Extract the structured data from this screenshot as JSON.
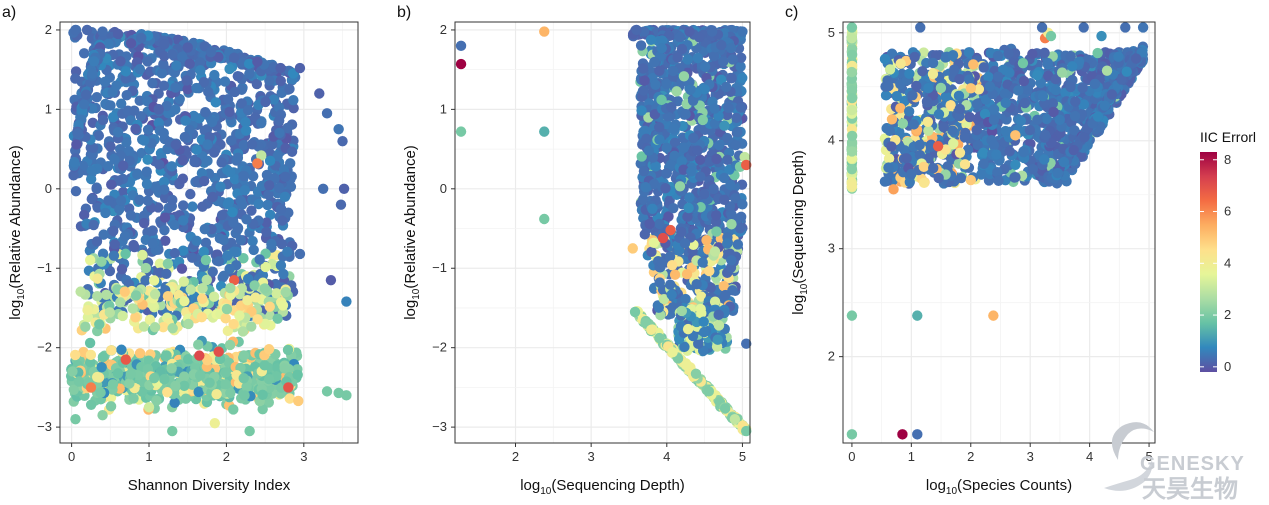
{
  "chart_data": [
    {
      "id": "a",
      "type": "scatter",
      "panel_tag": "a)",
      "xlabel": "Shannon Diversity Index",
      "ylabel_main": "log",
      "ylabel_sub": "10",
      "ylabel_rest": "(Relative Abundance)",
      "xlim": [
        -0.15,
        3.7
      ],
      "ylim": [
        -3.2,
        2.1
      ],
      "xticks": [
        0,
        1,
        2,
        3
      ],
      "yticks": [
        -3,
        -2,
        -1,
        0,
        1,
        2
      ],
      "xtick_labels": [
        "0",
        "1",
        "2",
        "3"
      ],
      "ytick_labels": [
        "−3",
        "−2",
        "−1",
        "0",
        "1",
        "2"
      ],
      "grid": true,
      "points_note_seeded": true,
      "points": [
        [
          0.05,
          2.0,
          0.5
        ],
        [
          0.2,
          2.0,
          0.4
        ],
        [
          0.4,
          1.98,
          0.5
        ],
        [
          0.6,
          1.95,
          0.3
        ],
        [
          0.9,
          1.9,
          0.5
        ],
        [
          1.2,
          1.82,
          0.4
        ],
        [
          1.5,
          1.78,
          0.3
        ],
        [
          1.8,
          1.72,
          0.5
        ],
        [
          2.1,
          1.65,
          0.4
        ],
        [
          2.4,
          1.6,
          0.2
        ],
        [
          2.7,
          1.52,
          0.3
        ],
        [
          2.95,
          1.52,
          0.3
        ],
        [
          3.2,
          1.2,
          0.3
        ],
        [
          3.3,
          0.95,
          0.5
        ],
        [
          3.45,
          0.75,
          0.6
        ],
        [
          3.5,
          0.6,
          0.4
        ],
        [
          3.48,
          -0.2,
          0.4
        ],
        [
          3.52,
          0.0,
          0.3
        ],
        [
          3.25,
          0.0,
          0.5
        ],
        [
          3.35,
          -1.15,
          0.2
        ],
        [
          3.55,
          -1.42,
          0.8
        ],
        [
          2.95,
          -0.82,
          0.5
        ],
        [
          2.45,
          0.42,
          3.0
        ],
        [
          2.4,
          0.32,
          6.0
        ],
        [
          2.1,
          -1.15,
          6.5
        ],
        [
          1.9,
          -2.05,
          6.8
        ],
        [
          1.65,
          -2.1,
          6.9
        ],
        [
          2.8,
          -2.5,
          6.7
        ],
        [
          0.7,
          -2.15,
          6.6
        ],
        [
          0.25,
          -2.5,
          6.0
        ],
        [
          1.85,
          -2.95,
          3.8
        ],
        [
          1.3,
          -3.05,
          2.0
        ],
        [
          2.3,
          -3.05,
          2.0
        ],
        [
          3.45,
          -2.57,
          2.0
        ],
        [
          3.55,
          -2.6,
          2.0
        ],
        [
          3.3,
          -2.55,
          2.0
        ],
        [
          0.05,
          -2.9,
          2.0
        ],
        [
          0.4,
          -2.85,
          2.2
        ],
        [
          1.0,
          -2.75,
          3.2
        ],
        [
          2.05,
          -1.25,
          2.5
        ]
      ]
    },
    {
      "id": "b",
      "type": "scatter",
      "panel_tag": "b)",
      "xlabel_main": "log",
      "xlabel_sub": "10",
      "xlabel_rest": "(Sequencing Depth)",
      "ylabel_main": "log",
      "ylabel_sub": "10",
      "ylabel_rest": "(Relative Abundance)",
      "xlim": [
        1.2,
        5.1
      ],
      "ylim": [
        -3.2,
        2.1
      ],
      "xticks": [
        2,
        3,
        4,
        5
      ],
      "yticks": [
        -3,
        -2,
        -1,
        0,
        1,
        2
      ],
      "xtick_labels": [
        "2",
        "3",
        "4",
        "5"
      ],
      "ytick_labels": [
        "−3",
        "−2",
        "−1",
        "0",
        "1",
        "2"
      ],
      "grid": true,
      "points": [
        [
          1.28,
          1.8,
          0.5
        ],
        [
          1.28,
          1.57,
          8.0
        ],
        [
          1.28,
          0.72,
          2.0
        ],
        [
          2.38,
          1.98,
          5.2
        ],
        [
          2.38,
          0.72,
          1.5
        ],
        [
          2.38,
          -0.38,
          2.0
        ],
        [
          3.55,
          -0.75,
          4.8
        ],
        [
          3.58,
          -1.55,
          2.0
        ],
        [
          3.95,
          -0.62,
          6.8
        ],
        [
          4.05,
          -0.52,
          6.5
        ],
        [
          5.03,
          0.4,
          3.0
        ],
        [
          5.05,
          0.3,
          6.5
        ],
        [
          5.05,
          -1.95,
          0.5
        ],
        [
          5.05,
          -3.05,
          2.0
        ],
        [
          4.9,
          -2.9,
          3.0
        ],
        [
          4.6,
          1.98,
          0.5
        ],
        [
          3.7,
          1.98,
          0.5
        ],
        [
          4.3,
          1.98,
          0.3
        ],
        [
          5.0,
          1.98,
          0.6
        ],
        [
          3.6,
          2.0,
          0.4
        ]
      ]
    },
    {
      "id": "c",
      "type": "scatter",
      "panel_tag": "c)",
      "xlabel_main": "log",
      "xlabel_sub": "10",
      "xlabel_rest": "(Species Counts)",
      "ylabel_main": "log",
      "ylabel_sub": "10",
      "ylabel_rest": "(Sequencing Depth)",
      "xlim": [
        -0.15,
        5.1
      ],
      "ylim": [
        1.2,
        5.1
      ],
      "xticks": [
        0,
        1,
        2,
        3,
        4,
        5
      ],
      "yticks": [
        2,
        3,
        4,
        5
      ],
      "xtick_labels": [
        "0",
        "1",
        "2",
        "3",
        "4",
        "5"
      ],
      "ytick_labels": [
        "2",
        "3",
        "4",
        "5"
      ],
      "grid": true,
      "points": [
        [
          0.0,
          5.05,
          2.0
        ],
        [
          0.0,
          4.95,
          3.0
        ],
        [
          0.0,
          2.38,
          2.0
        ],
        [
          0.0,
          1.28,
          2.0
        ],
        [
          1.1,
          1.28,
          0.5
        ],
        [
          0.85,
          1.28,
          8.0
        ],
        [
          1.1,
          2.38,
          1.5
        ],
        [
          2.38,
          2.38,
          5.2
        ],
        [
          1.15,
          5.05,
          0.5
        ],
        [
          3.25,
          4.95,
          6.0
        ],
        [
          3.3,
          5.0,
          4.0
        ],
        [
          3.35,
          4.97,
          2.0
        ],
        [
          3.2,
          5.05,
          0.5
        ],
        [
          3.9,
          5.05,
          0.5
        ],
        [
          4.2,
          4.97,
          1.0
        ],
        [
          4.6,
          5.05,
          0.5
        ],
        [
          4.9,
          5.05,
          0.6
        ],
        [
          2.75,
          4.05,
          5.0
        ],
        [
          0.7,
          3.55,
          5.5
        ],
        [
          1.45,
          3.95,
          6.5
        ]
      ]
    }
  ],
  "legend": {
    "title": "IIC Errorl",
    "ticks": [
      0,
      2,
      4,
      6,
      8
    ],
    "tick_labels": [
      "0",
      "2",
      "4",
      "6",
      "8"
    ],
    "range": [
      -0.2,
      8.3
    ],
    "colors": [
      "#5e4fa2",
      "#3288bd",
      "#66c2a5",
      "#abdda4",
      "#e6f598",
      "#fee08b",
      "#fdae61",
      "#f46d43",
      "#d53e4f",
      "#9e0142"
    ]
  },
  "watermark": {
    "en": "GENESKY",
    "cn": "天昊生物"
  }
}
